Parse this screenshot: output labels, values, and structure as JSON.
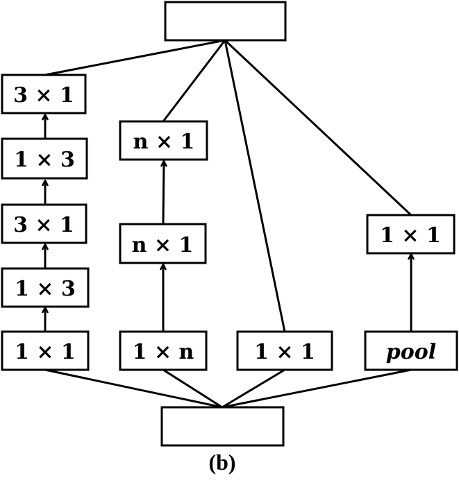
{
  "caption": "(b)",
  "nodes": {
    "top": "",
    "bottom": "",
    "b1_1x1": "1 × 1",
    "b1_1x3_a": "1 × 3",
    "b1_3x1_a": "3 × 1",
    "b1_1x3_b": "1 × 3",
    "b1_3x1_b": "3 × 1",
    "b2_1xn": "1 × n",
    "b2_nx1_a": "n × 1",
    "b2_nx1_b": "n × 1",
    "b3_1x1": "1 × 1",
    "b4_pool": "pool",
    "b4_1x1": "1 × 1"
  }
}
